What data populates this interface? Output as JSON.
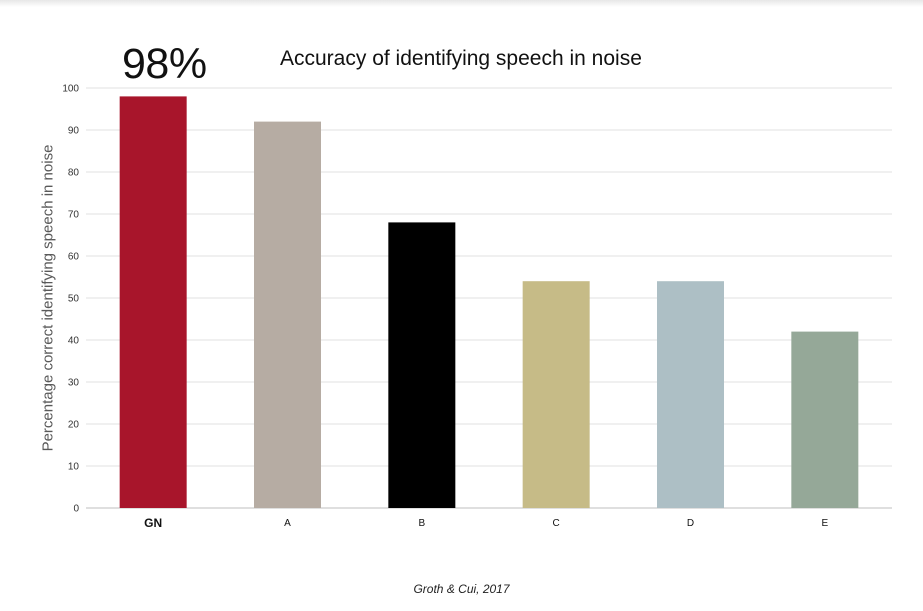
{
  "chart_data": {
    "type": "bar",
    "title": "Accuracy of identifying speech in noise",
    "highlight_label": "98%",
    "ylabel": "Percentage correct identifying speech in noise",
    "xlabel": "",
    "categories": [
      "GN",
      "A",
      "B",
      "C",
      "D",
      "E"
    ],
    "values": [
      98,
      92,
      68,
      54,
      54,
      42
    ],
    "colors": [
      "#a8152b",
      "#b6aca3",
      "#000000",
      "#c6bb87",
      "#adbfc5",
      "#95a898"
    ],
    "ylim": [
      0,
      100
    ],
    "yticks": [
      0,
      10,
      20,
      30,
      40,
      50,
      60,
      70,
      80,
      90,
      100
    ],
    "grid": true,
    "emphasized_category": "GN",
    "source": "Groth & Cui, 2017"
  }
}
